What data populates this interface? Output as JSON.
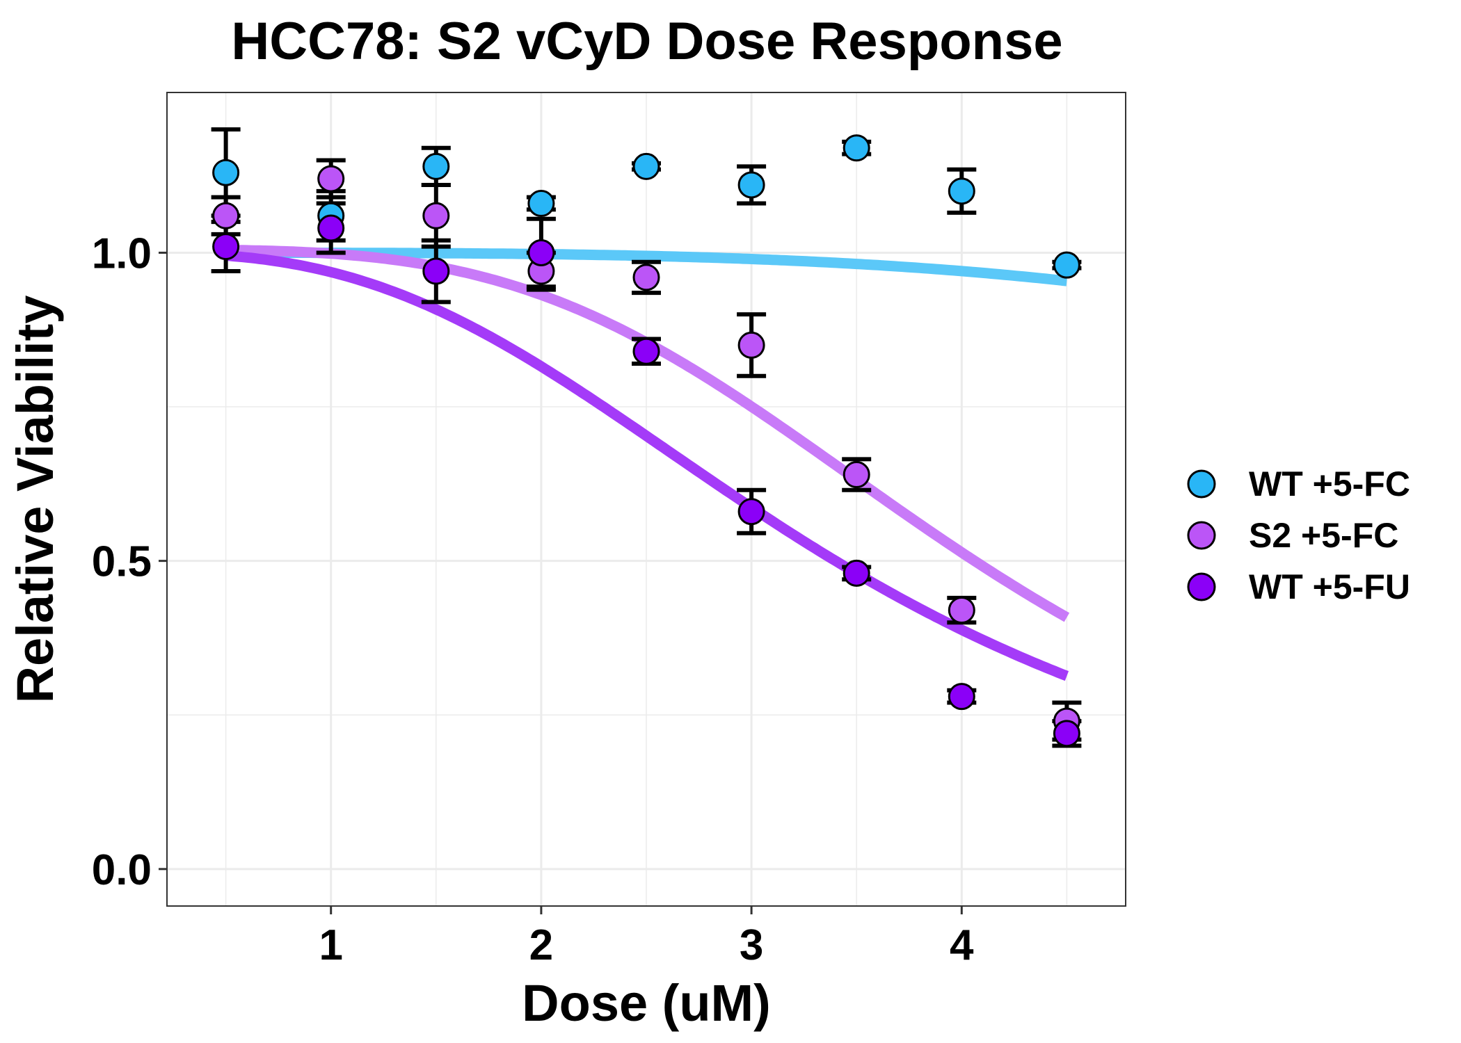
{
  "chart_data": {
    "type": "scatter",
    "title": "HCC78: S2 vCyD Dose Response",
    "xlabel": "Dose (uM)",
    "ylabel": "Relative Viability",
    "xlim": [
      0.22,
      4.78
    ],
    "ylim": [
      -0.06,
      1.26
    ],
    "x_ticks": [
      1,
      2,
      3,
      4
    ],
    "x_tick_labels": [
      "1",
      "2",
      "3",
      "4"
    ],
    "y_ticks": [
      0.0,
      0.5,
      1.0
    ],
    "y_tick_labels": [
      "0.0",
      "0.5",
      "1.0"
    ],
    "grid": true,
    "legend_position": "right",
    "series": [
      {
        "name": "WT +5-FC",
        "color": "#29B6F6",
        "curve_color": "#5BC8F8",
        "x": [
          0.5,
          1.0,
          1.5,
          2.0,
          2.5,
          3.0,
          3.5,
          4.0,
          4.5
        ],
        "y": [
          1.13,
          1.06,
          1.14,
          1.08,
          1.14,
          1.11,
          1.17,
          1.1,
          0.98
        ],
        "err": [
          0.07,
          0.04,
          0.03,
          0.01,
          0.005,
          0.03,
          0.01,
          0.035,
          0.005
        ],
        "fit": {
          "top": 1.0,
          "bottom": 0.0,
          "ec50": 10.0,
          "hill": 3.8
        }
      },
      {
        "name": "S2 +5-FC",
        "color": "#BB55F7",
        "curve_color": "#C87AF8",
        "x": [
          0.5,
          1.0,
          1.5,
          2.0,
          2.5,
          3.0,
          3.5,
          4.0,
          4.5
        ],
        "y": [
          1.06,
          1.12,
          1.06,
          0.97,
          0.96,
          0.85,
          0.64,
          0.42,
          0.24
        ],
        "err": [
          0.03,
          0.03,
          0.05,
          0.03,
          0.025,
          0.05,
          0.025,
          0.02,
          0.03
        ],
        "fit": {
          "top": 1.005,
          "bottom": 0.0,
          "ec50": 4.05,
          "hill": 3.6
        }
      },
      {
        "name": "WT +5-FU",
        "color": "#8B00F7",
        "curve_color": "#A43BF8",
        "x": [
          0.5,
          1.0,
          1.5,
          2.0,
          2.5,
          3.0,
          3.5,
          4.0,
          4.5
        ],
        "y": [
          1.01,
          1.04,
          0.97,
          1.0,
          0.84,
          0.58,
          0.48,
          0.28,
          0.22
        ],
        "err": [
          0.04,
          0.04,
          0.05,
          0.055,
          0.02,
          0.035,
          0.01,
          0.01,
          0.02
        ],
        "fit": {
          "top": 1.0,
          "bottom": 0.0,
          "ec50": 3.4,
          "hill": 2.8
        }
      }
    ]
  }
}
